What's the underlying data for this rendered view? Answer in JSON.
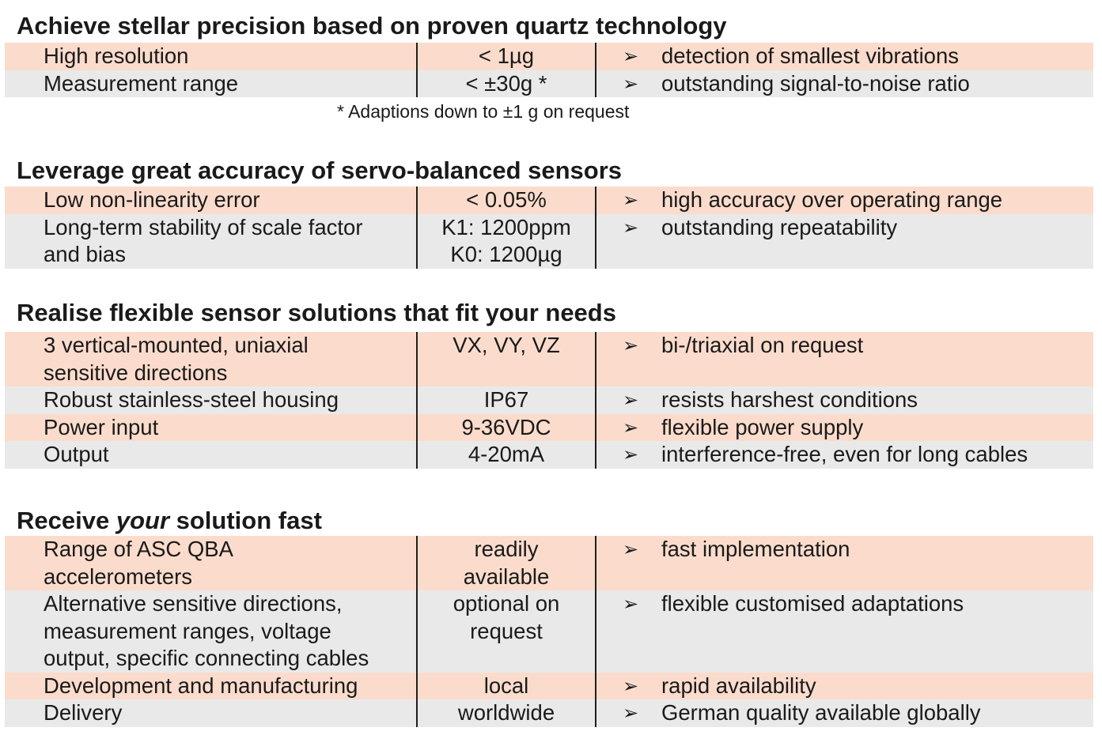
{
  "arrow_glyph": "➢",
  "colors": {
    "peach": "#fbdccc",
    "grey": "#e9e9e9"
  },
  "sections": [
    {
      "title_before": "Achieve stellar precision based on proven quartz technology",
      "title_em": "",
      "title_after": "",
      "rows": [
        {
          "feature": "High resolution",
          "value": "< 1µg",
          "benefit": "detection of smallest vibrations"
        },
        {
          "feature": "Measurement range",
          "value": "< ±30g *",
          "benefit": "outstanding signal-to-noise ratio"
        }
      ],
      "footnote": "* Adaptions down to ±1 g on request"
    },
    {
      "title_before": "Leverage great accuracy of servo-balanced sensors",
      "title_em": "",
      "title_after": "",
      "rows": [
        {
          "feature": "Low non-linearity error",
          "value": "< 0.05%",
          "benefit": "high accuracy over operating range"
        },
        {
          "feature": "Long-term stability of scale factor\nand bias",
          "value": "K1: 1200ppm\nK0: 1200µg",
          "benefit": "outstanding repeatability"
        }
      ]
    },
    {
      "title_before": "Realise flexible sensor solutions that fit your needs",
      "title_em": "",
      "title_after": "",
      "rows": [
        {
          "feature": "3 vertical-mounted, uniaxial\nsensitive directions",
          "value": "VX, VY, VZ",
          "benefit": "bi-/triaxial on request"
        },
        {
          "feature": "Robust stainless-steel housing",
          "value": "IP67",
          "benefit": "resists harshest conditions"
        },
        {
          "feature": "Power input",
          "value": "9-36VDC",
          "benefit": "flexible power supply"
        },
        {
          "feature": "Output",
          "value": "4-20mA",
          "benefit": "interference-free, even for long cables"
        }
      ]
    },
    {
      "title_before": "Receive ",
      "title_em": "your",
      "title_after": " solution fast",
      "rows": [
        {
          "feature": "Range of ASC QBA\naccelerometers",
          "value": "readily\navailable",
          "benefit": "fast implementation"
        },
        {
          "feature": "Alternative sensitive directions,\nmeasurement ranges, voltage\noutput, specific connecting cables",
          "value": "optional on\nrequest",
          "benefit": "flexible customised adaptations"
        },
        {
          "feature": "Development and manufacturing",
          "value": "local",
          "benefit": "rapid availability"
        },
        {
          "feature": "Delivery",
          "value": "worldwide",
          "benefit": "German quality available globally"
        }
      ]
    }
  ]
}
